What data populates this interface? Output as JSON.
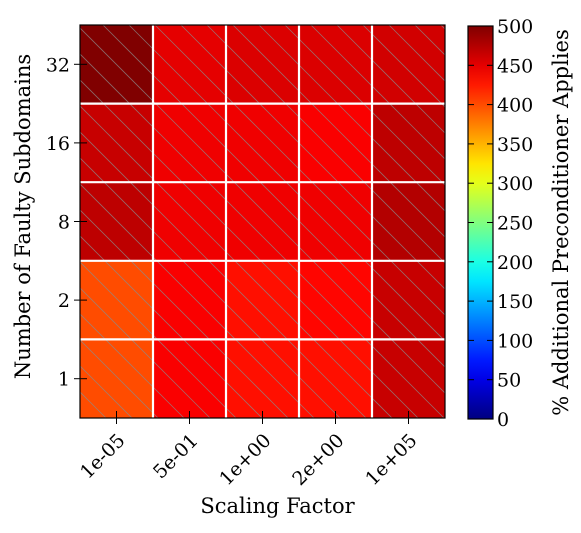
{
  "chart_data": {
    "type": "heatmap",
    "title": "",
    "xlabel": "Scaling Factor",
    "ylabel": "Number of Faulty Subdomains",
    "x_categories": [
      "1e-05",
      "5e-01",
      "1e+00",
      "2e+00",
      "1e+05"
    ],
    "y_categories": [
      "1",
      "2",
      "8",
      "16",
      "32"
    ],
    "values": [
      [
        400,
        440,
        430,
        430,
        465
      ],
      [
        400,
        440,
        430,
        435,
        465
      ],
      [
        470,
        445,
        445,
        445,
        475
      ],
      [
        465,
        445,
        445,
        440,
        470
      ],
      [
        500,
        450,
        455,
        455,
        460
      ]
    ],
    "colorbar": {
      "label": "% Additional Preconditioner Applies",
      "range": [
        0,
        500
      ],
      "ticks": [
        0,
        50,
        100,
        150,
        200,
        250,
        300,
        350,
        400,
        450,
        500
      ],
      "colormap": "jet"
    },
    "grid": true,
    "hatching": true,
    "grid_color": "#ffffff",
    "hatch_color": "#8c8c8c"
  }
}
